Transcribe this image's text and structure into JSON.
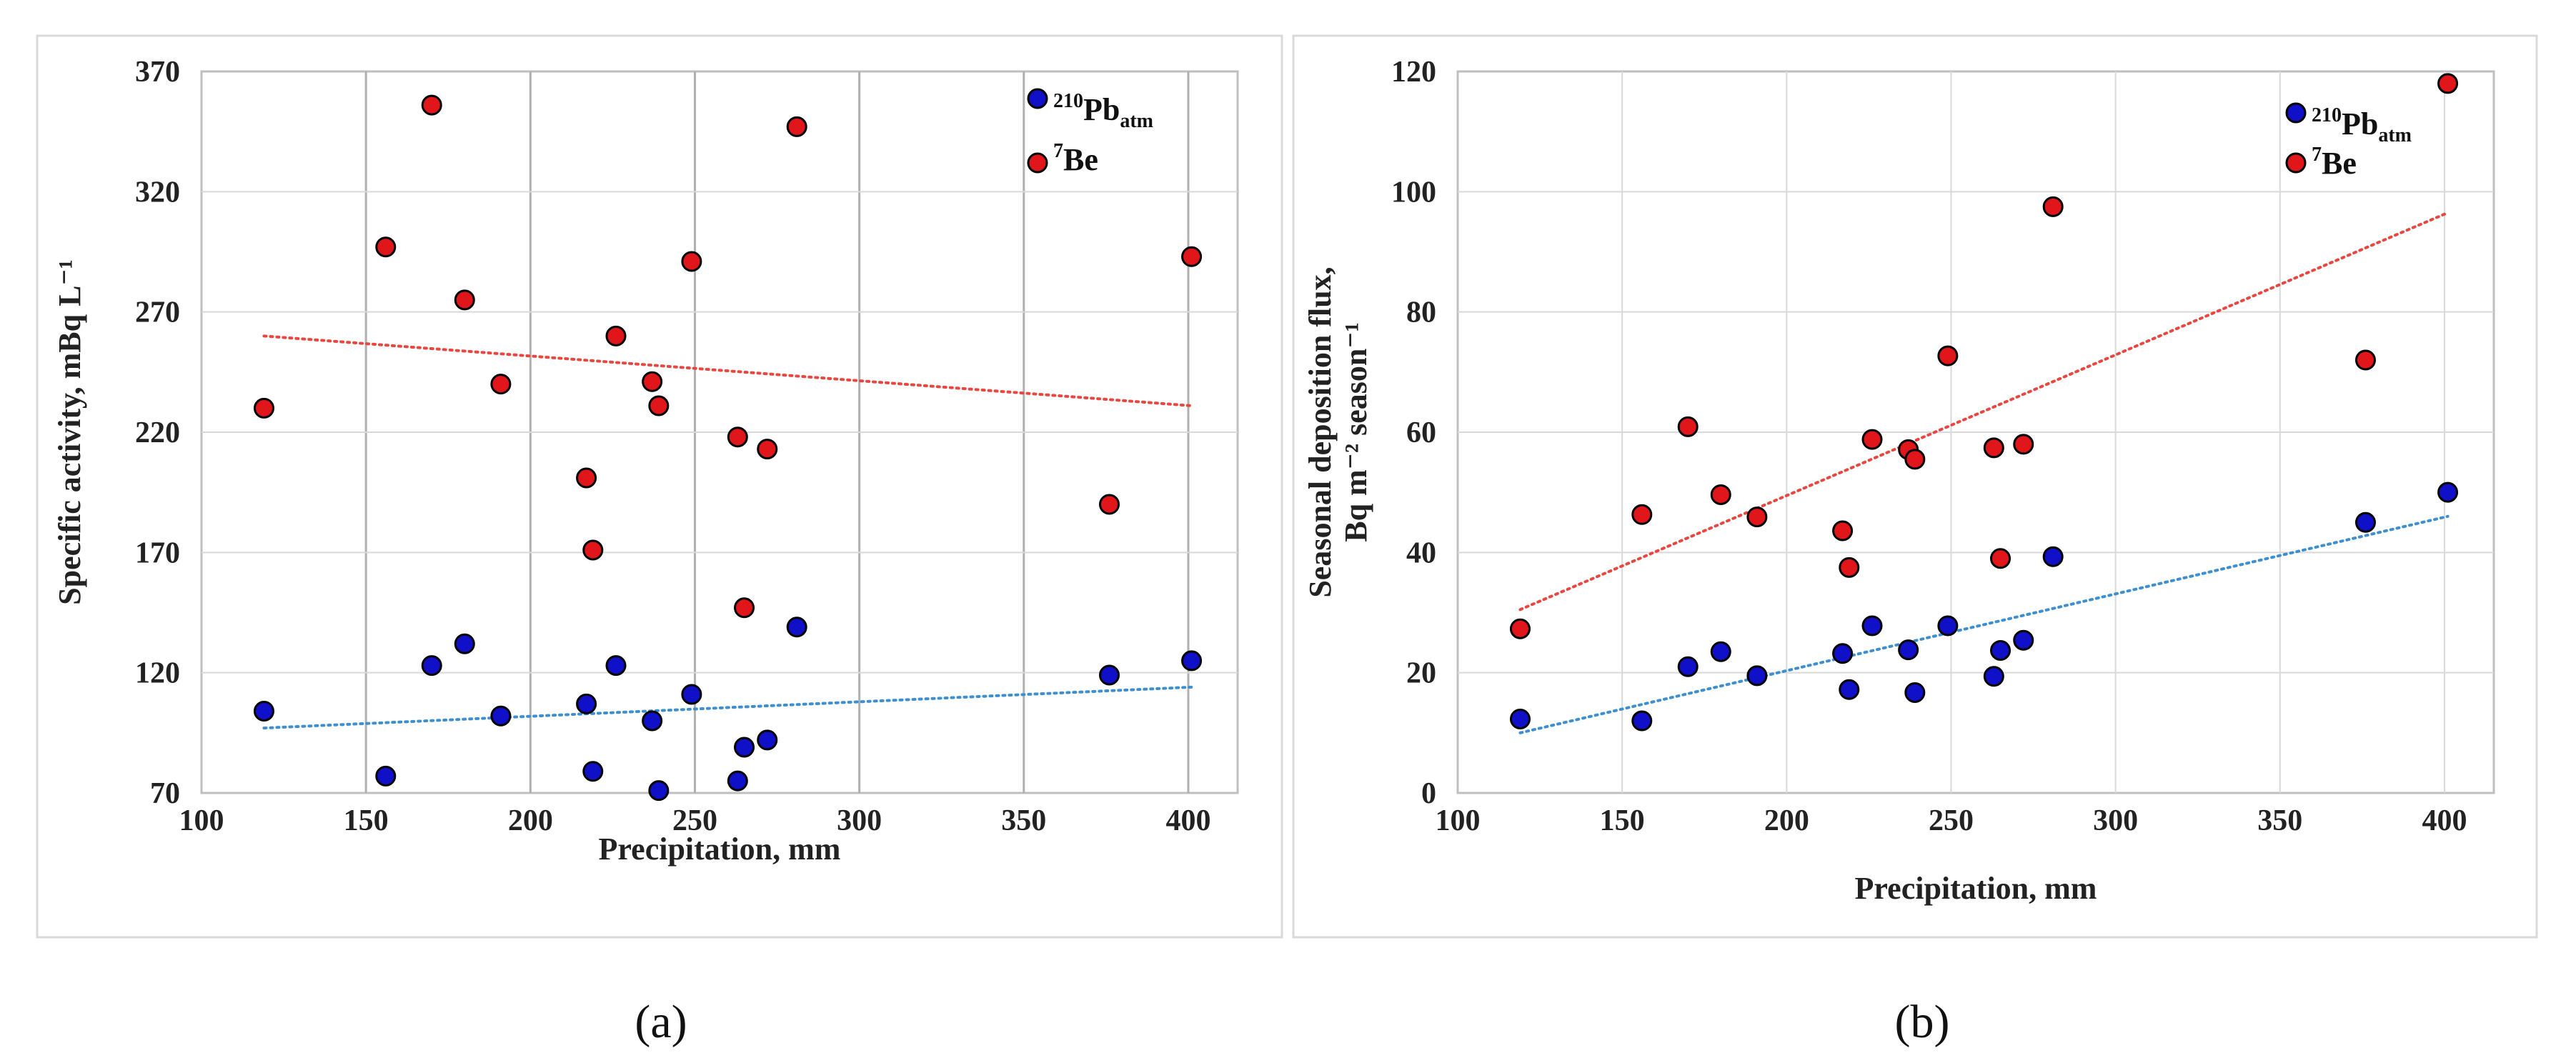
{
  "chart_data": [
    {
      "type": "scatter",
      "panel": "(a)",
      "xlabel": "Precipitation, mm",
      "ylabel": "Specific activity, mBq L⁻¹",
      "xlim": [
        100,
        415
      ],
      "ylim": [
        70,
        370
      ],
      "xticks": [
        100,
        150,
        200,
        250,
        300,
        350,
        400
      ],
      "yticks": [
        70,
        120,
        170,
        220,
        270,
        320,
        370
      ],
      "grid": "both",
      "legend_position": "top-right",
      "series": [
        {
          "name": "210Pbatm",
          "label_sup": "210",
          "label_main": "Pb",
          "label_sub": "atm",
          "color": "#1010c8",
          "trend_color": "#3d8fd0",
          "trend": [
            [
              119,
              97
            ],
            [
              401,
              114
            ]
          ],
          "points": [
            [
              119,
              104
            ],
            [
              156,
              77
            ],
            [
              170,
              123
            ],
            [
              180,
              132
            ],
            [
              191,
              102
            ],
            [
              217,
              107
            ],
            [
              219,
              79
            ],
            [
              226,
              123
            ],
            [
              237,
              100
            ],
            [
              239,
              71
            ],
            [
              249,
              111
            ],
            [
              263,
              75
            ],
            [
              265,
              89
            ],
            [
              272,
              92
            ],
            [
              281,
              139
            ],
            [
              376,
              119
            ],
            [
              401,
              125
            ]
          ]
        },
        {
          "name": "7Be",
          "label_sup": "7",
          "label_main": "Be",
          "label_sub": "",
          "color": "#e0161b",
          "trend_color": "#e8463e",
          "trend": [
            [
              119,
              260
            ],
            [
              401,
              231
            ]
          ],
          "points": [
            [
              119,
              230
            ],
            [
              156,
              297
            ],
            [
              170,
              356
            ],
            [
              180,
              275
            ],
            [
              191,
              240
            ],
            [
              217,
              201
            ],
            [
              219,
              171
            ],
            [
              226,
              260
            ],
            [
              237,
              241
            ],
            [
              239,
              231
            ],
            [
              249,
              291
            ],
            [
              263,
              218
            ],
            [
              265,
              147
            ],
            [
              272,
              213
            ],
            [
              281,
              347
            ],
            [
              376,
              190
            ],
            [
              401,
              293
            ]
          ]
        }
      ]
    },
    {
      "type": "scatter",
      "panel": "(b)",
      "xlabel": "Precipitation, mm",
      "ylabel_line1": "Seasonal deposition flux,",
      "ylabel_line2": "Bq m⁻² season⁻¹",
      "xlim": [
        100,
        415
      ],
      "ylim": [
        0,
        120
      ],
      "xticks": [
        100,
        150,
        200,
        250,
        300,
        350,
        400
      ],
      "yticks": [
        0,
        20,
        40,
        60,
        80,
        100,
        120
      ],
      "grid": "both",
      "legend_position": "top-right",
      "series": [
        {
          "name": "210Pbatm",
          "label_sup": "210",
          "label_main": "Pb",
          "label_sub": "atm",
          "color": "#1010c8",
          "trend_color": "#3d8fd0",
          "trend": [
            [
              119,
              10
            ],
            [
              401,
              46
            ]
          ],
          "points": [
            [
              119,
              12.3
            ],
            [
              156,
              12
            ],
            [
              170,
              21
            ],
            [
              180,
              23.5
            ],
            [
              191,
              19.5
            ],
            [
              217,
              23.2
            ],
            [
              219,
              17.2
            ],
            [
              226,
              27.8
            ],
            [
              237,
              23.8
            ],
            [
              239,
              16.7
            ],
            [
              249,
              27.8
            ],
            [
              263,
              19.4
            ],
            [
              265,
              23.7
            ],
            [
              272,
              25.4
            ],
            [
              281,
              39.3
            ],
            [
              376,
              45
            ],
            [
              401,
              50
            ]
          ]
        },
        {
          "name": "7Be",
          "label_sup": "7",
          "label_main": "Be",
          "label_sub": "",
          "color": "#e0161b",
          "trend_color": "#e8463e",
          "trend": [
            [
              119,
              30.5
            ],
            [
              401,
              96.5
            ]
          ],
          "points": [
            [
              119,
              27.3
            ],
            [
              156,
              46.3
            ],
            [
              170,
              60.9
            ],
            [
              180,
              49.6
            ],
            [
              191,
              45.9
            ],
            [
              217,
              43.6
            ],
            [
              219,
              37.5
            ],
            [
              226,
              58.8
            ],
            [
              237,
              57.1
            ],
            [
              239,
              55.5
            ],
            [
              249,
              72.7
            ],
            [
              263,
              57.4
            ],
            [
              265,
              39
            ],
            [
              272,
              58
            ],
            [
              281,
              97.5
            ],
            [
              376,
              72
            ],
            [
              401,
              118
            ]
          ]
        }
      ]
    }
  ]
}
